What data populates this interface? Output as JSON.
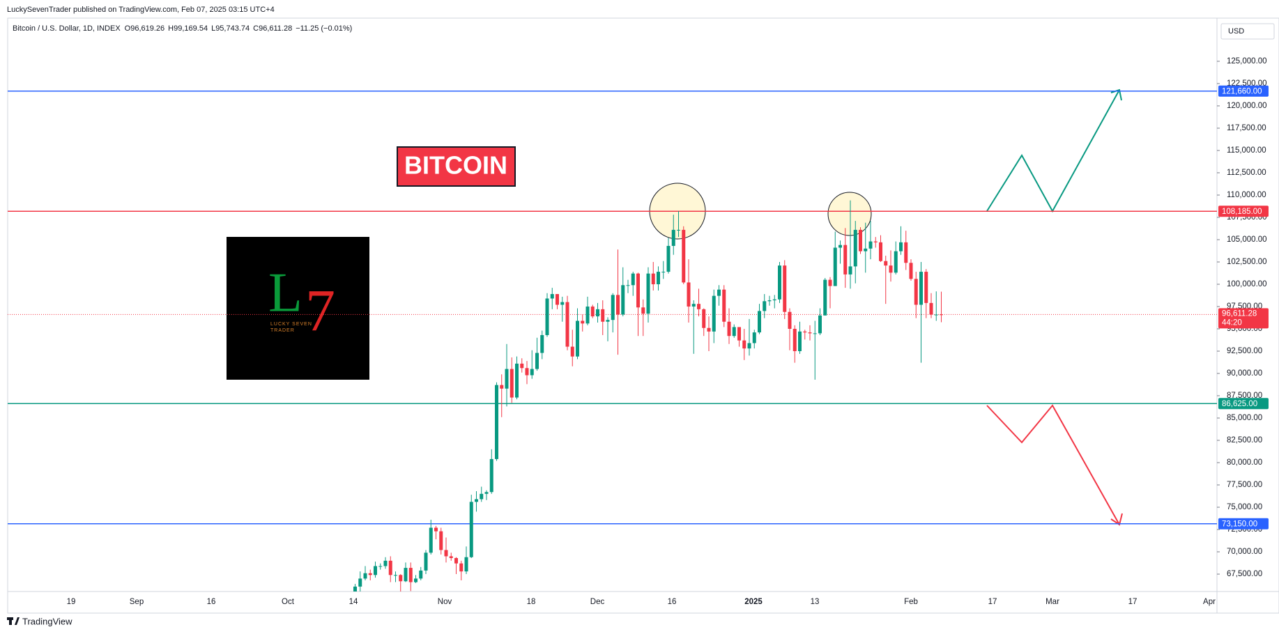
{
  "header": {
    "published": "LuckySevenTrader published on TradingView.com, Feb 07, 2025 03:15 UTC+4",
    "symbol": "Bitcoin / U.S. Dollar, 1D, INDEX",
    "ohlc": [
      {
        "key": "O",
        "value": "96,619.26"
      },
      {
        "key": "H",
        "value": "99,169.54"
      },
      {
        "key": "L",
        "value": "95,743.74"
      },
      {
        "key": "C",
        "value": "96,611.28"
      }
    ],
    "change": "−11.25 (−0.01%)"
  },
  "annotations": {
    "title_box": "BITCOIN",
    "logo": {
      "mark_l": "L",
      "mark_7": "7",
      "line1": "LUCKY SEVEN",
      "line2": "TRADER"
    }
  },
  "footer": "TradingView",
  "chart_data": {
    "type": "candlestick",
    "currency": "USD",
    "x": [
      "Oct 14",
      "Oct 15",
      "Oct 16",
      "Oct 17",
      "Oct 18",
      "Oct 19",
      "Oct 20",
      "Oct 21",
      "Oct 22",
      "Oct 23",
      "Oct 24",
      "Oct 25",
      "Oct 26",
      "Oct 27",
      "Oct 28",
      "Oct 29",
      "Oct 30",
      "Oct 31",
      "Nov 1",
      "Nov 2",
      "Nov 3",
      "Nov 4",
      "Nov 5",
      "Nov 6",
      "Nov 7",
      "Nov 8",
      "Nov 9",
      "Nov 10",
      "Nov 11",
      "Nov 12",
      "Nov 13",
      "Nov 14",
      "Nov 15",
      "Nov 16",
      "Nov 17",
      "Nov 18",
      "Nov 19",
      "Nov 20",
      "Nov 21",
      "Nov 22",
      "Nov 23",
      "Nov 24",
      "Nov 25",
      "Nov 26",
      "Nov 27",
      "Nov 28",
      "Nov 29",
      "Nov 30",
      "Dec 1",
      "Dec 2",
      "Dec 3",
      "Dec 4",
      "Dec 5",
      "Dec 6",
      "Dec 7",
      "Dec 8",
      "Dec 9",
      "Dec 10",
      "Dec 11",
      "Dec 12",
      "Dec 13",
      "Dec 14",
      "Dec 15",
      "Dec 16",
      "Dec 17",
      "Dec 18",
      "Dec 19",
      "Dec 20",
      "Dec 21",
      "Dec 22",
      "Dec 23",
      "Dec 24",
      "Dec 25",
      "Dec 26",
      "Dec 27",
      "Dec 28",
      "Dec 29",
      "Dec 30",
      "Dec 31",
      "Jan 1",
      "Jan 2",
      "Jan 3",
      "Jan 4",
      "Jan 5",
      "Jan 6",
      "Jan 7",
      "Jan 8",
      "Jan 9",
      "Jan 10",
      "Jan 11",
      "Jan 12",
      "Jan 13",
      "Jan 14",
      "Jan 15",
      "Jan 16",
      "Jan 17",
      "Jan 18",
      "Jan 19",
      "Jan 20",
      "Jan 21",
      "Jan 22",
      "Jan 23",
      "Jan 24",
      "Jan 25",
      "Jan 26",
      "Jan 27",
      "Jan 28",
      "Jan 29",
      "Jan 30",
      "Jan 31",
      "Feb 1",
      "Feb 2",
      "Feb 3",
      "Feb 4",
      "Feb 5",
      "Feb 6",
      "Feb 7"
    ],
    "open": [
      62900,
      66100,
      67000,
      67600,
      67400,
      68400,
      68400,
      69000,
      67400,
      67400,
      66700,
      68200,
      66600,
      67000,
      67900,
      69900,
      72700,
      72300,
      70200,
      69500,
      69300,
      68700,
      67800,
      69400,
      75600,
      75900,
      76500,
      76700,
      80400,
      88700,
      88300,
      90500,
      87300,
      91100,
      90600,
      89800,
      90500,
      92300,
      94300,
      98400,
      98900,
      97700,
      98000,
      93000,
      91900,
      95900,
      95600,
      97500,
      96400,
      97200,
      95800,
      96000,
      98800,
      96600,
      99900,
      99900,
      101200,
      97400,
      96700,
      101200,
      100000,
      101400,
      101400,
      104300,
      106100,
      106100,
      100200,
      97500,
      97800,
      97200,
      95100,
      94700,
      98700,
      99400,
      95800,
      94200,
      95200,
      93700,
      92800,
      93400,
      94600,
      97000,
      98100,
      98200,
      98300,
      102100,
      96900,
      95000,
      92500,
      94700,
      94600,
      94500,
      94500,
      96500,
      100500,
      99800,
      104100,
      104400,
      101100,
      102000,
      106100,
      103700,
      104000,
      104800,
      104700,
      102600,
      102100,
      101300,
      103700,
      104700,
      102400,
      100600,
      97700,
      101400,
      97900,
      96600,
      96619.26
    ],
    "high": [
      66400,
      67800,
      68400,
      68000,
      68900,
      68700,
      69400,
      69500,
      67800,
      67500,
      68800,
      68800,
      67400,
      68300,
      70200,
      73600,
      72900,
      72700,
      71600,
      69900,
      69400,
      69000,
      70600,
      76400,
      76800,
      77300,
      76900,
      81500,
      89000,
      89900,
      93300,
      91800,
      91900,
      91700,
      91400,
      92600,
      94000,
      94800,
      99000,
      99600,
      98900,
      98600,
      98700,
      94900,
      97300,
      96600,
      98600,
      97700,
      97900,
      98200,
      96300,
      99000,
      103900,
      101900,
      100500,
      101400,
      101300,
      98300,
      101900,
      102500,
      102000,
      102600,
      105200,
      107800,
      108200,
      106500,
      102800,
      98200,
      99500,
      97300,
      96400,
      99400,
      99900,
      99900,
      97300,
      95500,
      95200,
      95000,
      96100,
      94900,
      97800,
      98900,
      98700,
      98800,
      102500,
      102700,
      97300,
      95400,
      95800,
      94900,
      95400,
      95900,
      97300,
      100700,
      100800,
      105900,
      104900,
      106300,
      109400,
      107100,
      106400,
      106900,
      107100,
      105300,
      105500,
      103200,
      103800,
      104800,
      106500,
      106000,
      102800,
      101400,
      102500,
      101700,
      99000,
      99200,
      99169.54
    ],
    "low": [
      62400,
      64800,
      66800,
      66800,
      67100,
      68000,
      68100,
      66600,
      66600,
      65300,
      66600,
      65600,
      66500,
      66800,
      67500,
      69700,
      71400,
      69700,
      68800,
      69000,
      67500,
      66800,
      67500,
      69300,
      74500,
      75600,
      75800,
      76500,
      80200,
      85100,
      86300,
      86700,
      87100,
      90100,
      88800,
      89400,
      90300,
      91600,
      94100,
      97200,
      97200,
      95800,
      92600,
      90800,
      91600,
      94700,
      95400,
      96200,
      95700,
      94300,
      93600,
      94600,
      92100,
      96400,
      99000,
      98700,
      94200,
      94200,
      95700,
      99300,
      99300,
      100600,
      101200,
      103300,
      105300,
      100000,
      95700,
      92200,
      96400,
      94200,
      92500,
      93400,
      97600,
      95200,
      93300,
      94000,
      93000,
      91500,
      92000,
      92800,
      94400,
      96200,
      97600,
      97300,
      97900,
      96100,
      92600,
      91200,
      92200,
      93800,
      93700,
      89300,
      94300,
      96500,
      97300,
      99800,
      102300,
      99600,
      99500,
      100100,
      103400,
      101300,
      102800,
      104100,
      102500,
      97800,
      100300,
      101100,
      103300,
      101600,
      100400,
      96200,
      91200,
      96200,
      96200,
      95900,
      95743.74
    ],
    "close": [
      66100,
      67000,
      67600,
      67400,
      68400,
      68400,
      69000,
      67400,
      67400,
      66700,
      68200,
      66600,
      67000,
      67900,
      69900,
      72700,
      72300,
      70200,
      69500,
      69300,
      68700,
      67800,
      69400,
      75600,
      75900,
      76500,
      76700,
      80400,
      88700,
      88300,
      90500,
      87300,
      91100,
      90600,
      89800,
      90500,
      92300,
      94300,
      98400,
      98900,
      97700,
      98000,
      93000,
      91900,
      95900,
      95600,
      97500,
      96400,
      97200,
      95800,
      96000,
      98800,
      96600,
      99900,
      99900,
      101200,
      97400,
      96700,
      101200,
      100000,
      101400,
      101400,
      104300,
      106100,
      106100,
      100200,
      97500,
      97800,
      97200,
      95100,
      94700,
      98700,
      99400,
      95800,
      94200,
      95200,
      93700,
      92800,
      93400,
      94600,
      97000,
      98100,
      98200,
      98300,
      102100,
      96900,
      95000,
      92500,
      94700,
      94600,
      94500,
      94500,
      96500,
      100500,
      99800,
      104100,
      104400,
      101100,
      102000,
      106100,
      103700,
      104000,
      104800,
      104700,
      102600,
      102100,
      101300,
      103700,
      104700,
      102400,
      100600,
      97700,
      101400,
      97900,
      96600,
      96600,
      96611.28
    ],
    "up_color": "#089981",
    "down_color": "#f23645",
    "ylim": [
      65550,
      129840
    ],
    "yticks": [
      {
        "value": 67500,
        "label": "67,500.00"
      },
      {
        "value": 70000,
        "label": "70,000.00"
      },
      {
        "value": 72500,
        "label": "72,500.00"
      },
      {
        "value": 75000,
        "label": "75,000.00"
      },
      {
        "value": 77500,
        "label": "77,500.00"
      },
      {
        "value": 80000,
        "label": "80,000.00"
      },
      {
        "value": 82500,
        "label": "82,500.00"
      },
      {
        "value": 85000,
        "label": "85,000.00"
      },
      {
        "value": 87500,
        "label": "87,500.00"
      },
      {
        "value": 90000,
        "label": "90,000.00"
      },
      {
        "value": 92500,
        "label": "92,500.00"
      },
      {
        "value": 95000,
        "label": "95,000.00"
      },
      {
        "value": 97500,
        "label": "97,500.00"
      },
      {
        "value": 100000,
        "label": "100,000.00"
      },
      {
        "value": 102500,
        "label": "102,500.00"
      },
      {
        "value": 105000,
        "label": "105,000.00"
      },
      {
        "value": 107500,
        "label": "107,500.00"
      },
      {
        "value": 110000,
        "label": "110,000.00"
      },
      {
        "value": 112500,
        "label": "112,500.00"
      },
      {
        "value": 115000,
        "label": "115,000.00"
      },
      {
        "value": 117500,
        "label": "117,500.00"
      },
      {
        "value": 120000,
        "label": "120,000.00"
      },
      {
        "value": 122500,
        "label": "122,500.00"
      },
      {
        "value": 125000,
        "label": "125,000.00"
      }
    ],
    "xticks": [
      "19",
      "Sep",
      "16",
      "Oct",
      "14",
      "Nov",
      "18",
      "Dec",
      "16",
      "2025",
      "13",
      "Feb",
      "17",
      "Mar",
      "17",
      "Apr"
    ],
    "levels": [
      {
        "value": 121660,
        "label": "121,660.00",
        "color": "#2962ff"
      },
      {
        "value": 108185,
        "label": "108,185.00",
        "color": "#f23645"
      },
      {
        "value": 86625,
        "label": "86,625.00",
        "color": "#089981"
      },
      {
        "value": 73150,
        "label": "73,150.00",
        "color": "#2962ff"
      }
    ],
    "last_price": {
      "value": 96611.28,
      "label": "96,611.28",
      "countdown": "44:20",
      "color": "#f23645"
    }
  }
}
